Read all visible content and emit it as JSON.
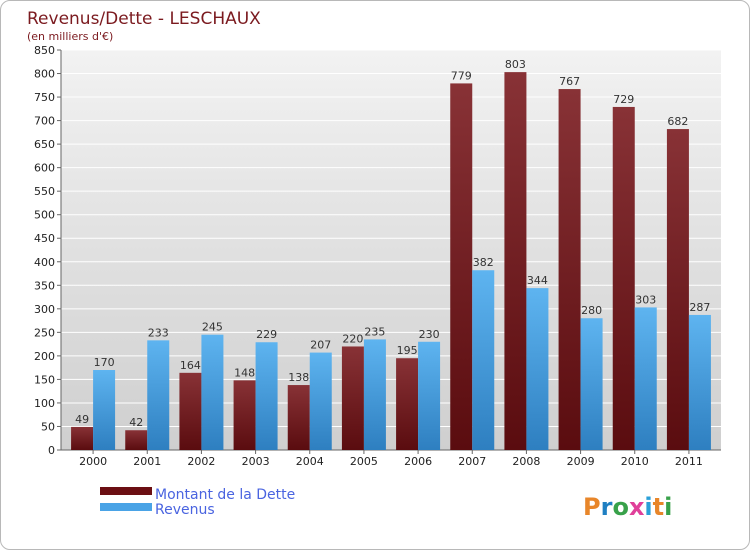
{
  "chart_data": {
    "type": "bar",
    "title": "Revenus/Dette - LESCHAUX",
    "subtitle": "(en milliers d'€)",
    "categories": [
      "2000",
      "2001",
      "2002",
      "2003",
      "2004",
      "2005",
      "2006",
      "2007",
      "2008",
      "2009",
      "2010",
      "2011"
    ],
    "series": [
      {
        "name": "Montant de la Dette",
        "color": "#7a1e22",
        "values": [
          49,
          42,
          164,
          148,
          138,
          220,
          195,
          779,
          803,
          767,
          729,
          682
        ]
      },
      {
        "name": "Revenus",
        "color": "#4aa3e6",
        "values": [
          170,
          233,
          245,
          229,
          207,
          235,
          230,
          382,
          344,
          280,
          303,
          287
        ]
      }
    ],
    "ylim": [
      0,
      850
    ],
    "ytick_step": 50,
    "grid": true,
    "legend": "bottom-left"
  },
  "logo": {
    "text": "Proxiti",
    "letter_colors": [
      "#e8862a",
      "#1f7fc2",
      "#38a14a",
      "#e0409a",
      "#2aa0d8",
      "#e8862a",
      "#38a14a"
    ]
  }
}
